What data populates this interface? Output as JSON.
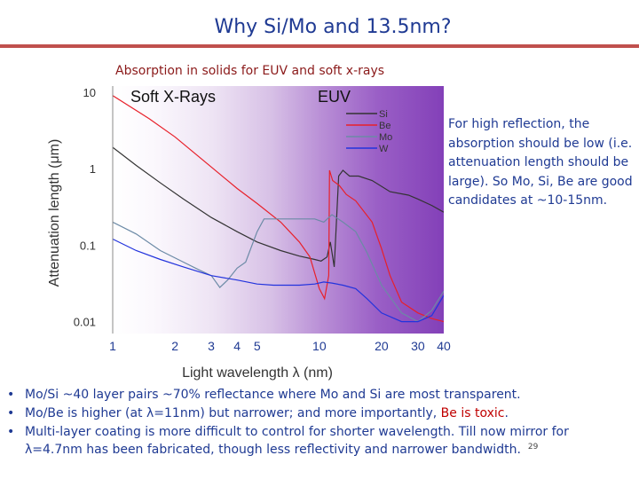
{
  "slide": {
    "title": "Why Si/Mo and 13.5nm?",
    "caption": "Absorption in solids for EUV and soft x-rays",
    "side_text": "For high reflection, the absorption should be low (i.e. attenuation length should be large). So Mo, Si, Be are good candidates at ~10-15nm.",
    "bullets": [
      {
        "text": "Mo/Si   ~40 layer pairs ~70% reflectance where Mo and Si are most transparent."
      },
      {
        "pre": "Mo/Be is higher (at λ=11nm) but narrower; and more importantly, ",
        "red": "Be is toxic",
        "post": "."
      },
      {
        "text": "Multi-layer coating is more difficult to control for shorter wavelength. Till now mirror for λ=4.7nm has been fabricated, though less reflectivity and narrower bandwidth."
      }
    ],
    "bullet_marker": "•",
    "page_number": "29"
  },
  "chart_data": {
    "type": "line",
    "title": "",
    "xlabel": "Light wavelength λ (nm)",
    "ylabel": "Attenuation length (μm)",
    "xscale": "log",
    "yscale": "log",
    "xlim": [
      1,
      40
    ],
    "ylim": [
      0.007,
      12
    ],
    "xticks": [
      1,
      2,
      3,
      4,
      5,
      10,
      20,
      30,
      40
    ],
    "xtick_labels": [
      "1",
      "2",
      "3",
      "4",
      "5",
      "10",
      "20",
      "30",
      "40"
    ],
    "yticks": [
      0.01,
      0.1,
      1,
      10
    ],
    "ytick_labels": [
      "0.01",
      "0.1",
      "1",
      "10"
    ],
    "regions": [
      "Soft X-Rays",
      "EUV"
    ],
    "legend_position": "top-right",
    "series": [
      {
        "name": "Si",
        "color": "#333333",
        "x": [
          1,
          1.3,
          1.7,
          2.2,
          3,
          4,
          5,
          6.5,
          8,
          9.5,
          10.2,
          10.9,
          11.3,
          11.8,
          12.4,
          13,
          14,
          15.5,
          18,
          22,
          27,
          30,
          35,
          40
        ],
        "y": [
          1.9,
          1.1,
          0.65,
          0.4,
          0.23,
          0.15,
          0.11,
          0.085,
          0.072,
          0.065,
          0.062,
          0.07,
          0.11,
          0.052,
          0.8,
          0.95,
          0.8,
          0.8,
          0.7,
          0.5,
          0.45,
          0.4,
          0.33,
          0.27
        ]
      },
      {
        "name": "Be",
        "color": "#e8202a",
        "x": [
          1,
          1.5,
          2,
          3,
          4,
          5,
          6.5,
          8,
          9,
          10,
          10.6,
          11.1,
          11.2,
          11.6,
          12.5,
          13.5,
          15,
          18,
          20,
          22,
          25,
          30,
          35,
          40
        ],
        "y": [
          9.0,
          4.5,
          2.6,
          1.05,
          0.55,
          0.35,
          0.2,
          0.11,
          0.07,
          0.027,
          0.02,
          0.04,
          0.95,
          0.7,
          0.6,
          0.46,
          0.38,
          0.2,
          0.09,
          0.04,
          0.018,
          0.013,
          0.011,
          0.01
        ]
      },
      {
        "name": "Mo",
        "color": "#6c8aa6",
        "x": [
          1,
          1.3,
          1.7,
          2.2,
          2.6,
          3,
          3.3,
          3.6,
          4,
          4.4,
          5,
          5.4,
          6.5,
          8,
          9.5,
          10.5,
          11.5,
          13,
          15,
          17,
          20,
          25,
          30,
          35,
          40
        ],
        "y": [
          0.2,
          0.14,
          0.085,
          0.06,
          0.048,
          0.04,
          0.028,
          0.035,
          0.05,
          0.06,
          0.15,
          0.22,
          0.22,
          0.22,
          0.22,
          0.2,
          0.25,
          0.2,
          0.15,
          0.08,
          0.03,
          0.013,
          0.01,
          0.014,
          0.025
        ]
      },
      {
        "name": "W",
        "color": "#2233dd",
        "x": [
          1,
          1.3,
          1.7,
          2.2,
          3,
          4,
          5,
          6,
          8,
          9.5,
          10.5,
          11.5,
          13,
          15,
          17,
          20,
          25,
          30,
          35,
          40
        ],
        "y": [
          0.12,
          0.085,
          0.065,
          0.052,
          0.04,
          0.035,
          0.031,
          0.03,
          0.03,
          0.031,
          0.033,
          0.032,
          0.03,
          0.027,
          0.02,
          0.013,
          0.01,
          0.01,
          0.012,
          0.022
        ]
      }
    ]
  }
}
